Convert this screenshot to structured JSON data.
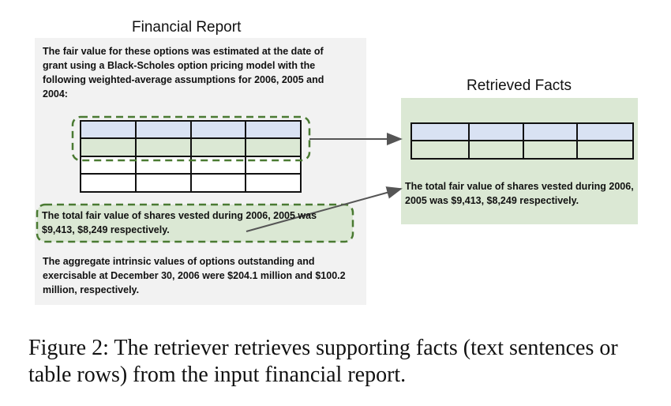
{
  "left_panel": {
    "title": "Financial Report",
    "para1": "The fair value for these options was estimated at the date of grant using a Black-Scholes option pricing model with the following weighted-average assumptions for 2006, 2005 and 2004:",
    "highlighted_sentence": "The total fair value of shares vested during 2006, 2005 was $9,413, $8,249 respectively.",
    "para3": "The aggregate intrinsic values of options outstanding and exercisable at December 30, 2006 were $204.1 million and $100.2 million, respectively."
  },
  "right_panel": {
    "title": "Retrieved Facts",
    "retrieved_sentence": "The total fair value of shares vested during 2006, 2005 was $9,413, $8,249 respectively."
  },
  "caption": "Figure 2: The retriever retrieves supporting facts (text sentences or table rows) from the input financial report.",
  "colors": {
    "header_row": "#d9e2f3",
    "green_row": "#dbe8d4",
    "dashed_border": "#4a7a32",
    "arrow": "#555555"
  }
}
